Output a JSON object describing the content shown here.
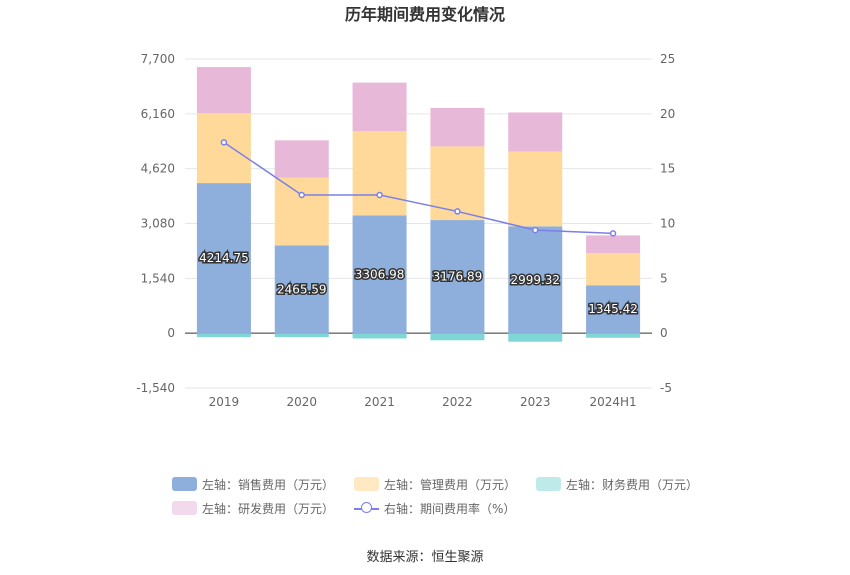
{
  "chart_data": {
    "type": "bar",
    "title": "历年期间费用变化情况",
    "categories": [
      "2019",
      "2020",
      "2021",
      "2022",
      "2023",
      "2024H1"
    ],
    "left_axis": {
      "ylim": [
        -1540,
        7700
      ],
      "ticks": [
        "-1,540",
        "0",
        "1,540",
        "3,080",
        "4,620",
        "6,160",
        "7,700"
      ]
    },
    "right_axis": {
      "ylim": [
        -5,
        25
      ],
      "ticks": [
        "-5",
        "0",
        "5",
        "10",
        "15",
        "20",
        "25"
      ]
    },
    "series": [
      {
        "name": "左轴：销售费用（万元）",
        "axis": "left",
        "stack": true,
        "color": "#8eaedb",
        "values": [
          4214.75,
          2465.59,
          3306.98,
          3176.89,
          2999.32,
          1345.42
        ],
        "labels": [
          "4214.75",
          "2465.59",
          "3306.98",
          "3176.89",
          "2999.32",
          "1345.42"
        ]
      },
      {
        "name": "左轴：管理费用（万元）",
        "axis": "left",
        "stack": true,
        "color": "#ffd99a",
        "values": [
          1960,
          1900,
          2370,
          2070,
          2100,
          900
        ]
      },
      {
        "name": "左轴：财务费用（万元）",
        "axis": "left",
        "stack": true,
        "color": "#7fd7d5",
        "values": [
          -110,
          -110,
          -150,
          -200,
          -240,
          -130
        ]
      },
      {
        "name": "左轴：研发费用（万元）",
        "axis": "left",
        "stack": true,
        "color": "#e8b8d8",
        "values": [
          1300,
          1050,
          1360,
          1080,
          1100,
          500
        ]
      },
      {
        "name": "右轴：期间费用率（%）",
        "axis": "right",
        "type": "line",
        "color": "#7a80e6",
        "values": [
          17.4,
          12.6,
          12.6,
          11.1,
          9.4,
          9.1
        ]
      }
    ],
    "grid": true
  },
  "legend": [
    [
      {
        "label": "左轴：销售费用（万元）",
        "color": "#8eaedb"
      },
      {
        "label": "左轴：管理费用（万元）",
        "color": "#ffe8c2"
      },
      {
        "label": "左轴：财务费用（万元）",
        "color": "#bfeaea"
      }
    ],
    [
      {
        "label": "左轴：研发费用（万元）",
        "color": "#f3d9ec"
      },
      {
        "label": "右轴：期间费用率（%）",
        "color": "#7a80e6",
        "line": true
      }
    ]
  ],
  "source": "数据来源：恒生聚源"
}
